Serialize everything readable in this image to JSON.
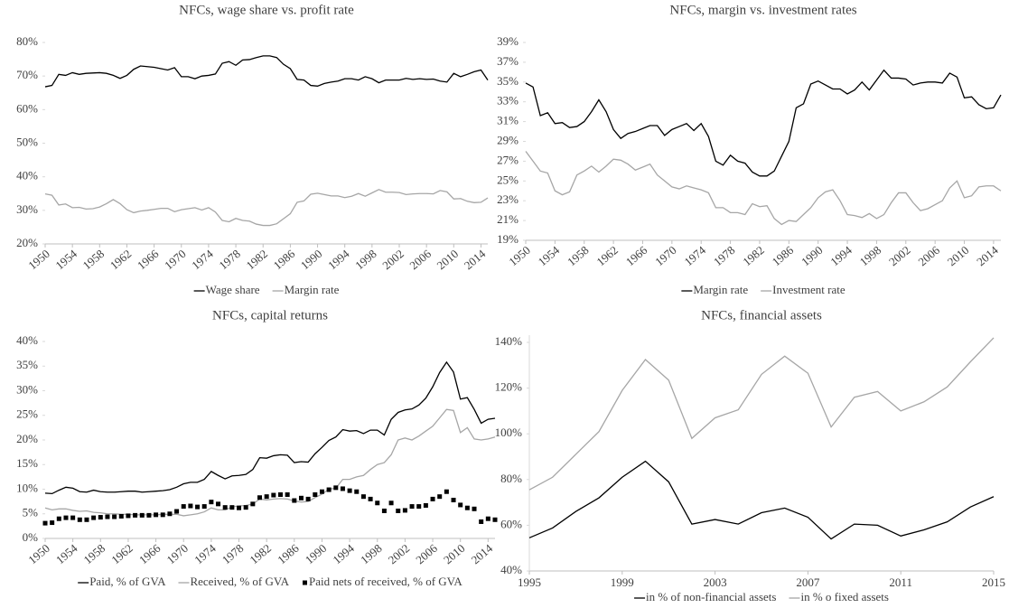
{
  "chart_data": [
    {
      "type": "line",
      "title": "NFCs, wage share vs. profit rate",
      "x": [
        1950,
        1951,
        1952,
        1953,
        1954,
        1955,
        1956,
        1957,
        1958,
        1959,
        1960,
        1961,
        1962,
        1963,
        1964,
        1965,
        1966,
        1967,
        1968,
        1969,
        1970,
        1971,
        1972,
        1973,
        1974,
        1975,
        1976,
        1977,
        1978,
        1979,
        1980,
        1981,
        1982,
        1983,
        1984,
        1985,
        1986,
        1987,
        1988,
        1989,
        1990,
        1991,
        1992,
        1993,
        1994,
        1995,
        1996,
        1997,
        1998,
        1999,
        2000,
        2001,
        2002,
        2003,
        2004,
        2005,
        2006,
        2007,
        2008,
        2009,
        2010,
        2011,
        2012,
        2013,
        2014,
        2015
      ],
      "series": [
        {
          "name": "Wage share",
          "color": "#000000",
          "values": [
            66.8,
            67.2,
            70.5,
            70.2,
            71.0,
            70.5,
            70.8,
            70.9,
            71.0,
            70.8,
            70.2,
            69.3,
            70.2,
            72.0,
            73.0,
            72.8,
            72.6,
            72.2,
            71.8,
            72.5,
            69.8,
            69.8,
            69.2,
            70.0,
            70.2,
            70.6,
            73.8,
            74.3,
            73.2,
            74.8,
            74.9,
            75.5,
            76.0,
            76.0,
            75.5,
            73.5,
            72.2,
            69.0,
            68.8,
            67.2,
            67.0,
            67.8,
            68.2,
            68.5,
            69.2,
            69.2,
            68.8,
            69.8,
            69.2,
            68.0,
            68.8,
            68.8,
            68.8,
            69.3,
            69.0,
            69.2,
            69.0,
            69.1,
            68.5,
            68.2,
            70.8,
            69.8,
            70.5,
            71.3,
            71.8,
            68.8
          ]
        },
        {
          "name": "Margin rate",
          "color": "#a6a6a6",
          "values": [
            34.9,
            34.5,
            31.6,
            31.9,
            30.8,
            30.9,
            30.4,
            30.5,
            31.0,
            32.0,
            33.2,
            32.0,
            30.2,
            29.3,
            29.8,
            30.0,
            30.3,
            30.6,
            30.6,
            29.6,
            30.2,
            30.5,
            30.8,
            30.1,
            30.8,
            29.5,
            27.0,
            26.6,
            27.6,
            27.0,
            26.8,
            25.9,
            25.5,
            25.5,
            26.0,
            27.5,
            29.0,
            32.4,
            32.8,
            34.8,
            35.1,
            34.7,
            34.3,
            34.3,
            33.8,
            34.2,
            35.0,
            34.2,
            35.2,
            36.2,
            35.4,
            35.4,
            35.3,
            34.7,
            34.9,
            35.0,
            35.0,
            34.9,
            35.9,
            35.5,
            33.4,
            33.5,
            32.7,
            32.3,
            32.4,
            33.7
          ]
        }
      ],
      "xlim": [
        1950,
        2015
      ],
      "xticks": [
        1950,
        1954,
        1958,
        1962,
        1966,
        1970,
        1974,
        1978,
        1982,
        1986,
        1990,
        1994,
        1998,
        2002,
        2006,
        2010,
        2014
      ],
      "ylim": [
        20,
        80
      ],
      "yticks": [
        {
          "value": 20,
          "label": "20%"
        },
        {
          "value": 30,
          "label": "30%"
        },
        {
          "value": 40,
          "label": "40%"
        },
        {
          "value": 50,
          "label": "50%"
        },
        {
          "value": 60,
          "label": "60%"
        },
        {
          "value": 70,
          "label": "70%"
        },
        {
          "value": 80,
          "label": "80%"
        }
      ],
      "legend": "bottom"
    },
    {
      "type": "line",
      "title": "NFCs, margin vs. investment rates",
      "x": [
        1950,
        1951,
        1952,
        1953,
        1954,
        1955,
        1956,
        1957,
        1958,
        1959,
        1960,
        1961,
        1962,
        1963,
        1964,
        1965,
        1966,
        1967,
        1968,
        1969,
        1970,
        1971,
        1972,
        1973,
        1974,
        1975,
        1976,
        1977,
        1978,
        1979,
        1980,
        1981,
        1982,
        1983,
        1984,
        1985,
        1986,
        1987,
        1988,
        1989,
        1990,
        1991,
        1992,
        1993,
        1994,
        1995,
        1996,
        1997,
        1998,
        1999,
        2000,
        2001,
        2002,
        2003,
        2004,
        2005,
        2006,
        2007,
        2008,
        2009,
        2010,
        2011,
        2012,
        2013,
        2014,
        2015
      ],
      "series": [
        {
          "name": "Margin rate",
          "color": "#000000",
          "values": [
            34.9,
            34.5,
            31.6,
            31.9,
            30.8,
            30.9,
            30.4,
            30.5,
            31.0,
            32.0,
            33.2,
            32.0,
            30.2,
            29.3,
            29.8,
            30.0,
            30.3,
            30.6,
            30.6,
            29.6,
            30.2,
            30.5,
            30.8,
            30.1,
            30.8,
            29.5,
            27.0,
            26.6,
            27.6,
            27.0,
            26.8,
            25.9,
            25.5,
            25.5,
            26.0,
            27.5,
            29.0,
            32.4,
            32.8,
            34.8,
            35.1,
            34.7,
            34.3,
            34.3,
            33.8,
            34.2,
            35.0,
            34.2,
            35.2,
            36.2,
            35.4,
            35.4,
            35.3,
            34.7,
            34.9,
            35.0,
            35.0,
            34.9,
            35.9,
            35.5,
            33.4,
            33.5,
            32.7,
            32.3,
            32.4,
            33.7
          ]
        },
        {
          "name": "Investment rate",
          "color": "#a6a6a6",
          "values": [
            28.0,
            27.0,
            26.0,
            25.8,
            24.0,
            23.6,
            23.9,
            25.6,
            26.0,
            26.5,
            25.9,
            26.5,
            27.2,
            27.1,
            26.7,
            26.1,
            26.4,
            26.7,
            25.6,
            25.0,
            24.4,
            24.2,
            24.5,
            24.3,
            24.1,
            23.8,
            22.3,
            22.3,
            21.8,
            21.8,
            21.6,
            22.7,
            22.4,
            22.5,
            21.2,
            20.6,
            21.0,
            20.9,
            21.6,
            22.3,
            23.3,
            23.9,
            24.1,
            23.0,
            21.6,
            21.5,
            21.3,
            21.7,
            21.2,
            21.6,
            22.8,
            23.8,
            23.8,
            22.8,
            22.0,
            22.2,
            22.6,
            23.0,
            24.3,
            25.0,
            23.3,
            23.5,
            24.4,
            24.5,
            24.5,
            24.0
          ]
        }
      ],
      "xlim": [
        1950,
        2015
      ],
      "xticks": [
        1950,
        1954,
        1958,
        1962,
        1966,
        1970,
        1974,
        1978,
        1982,
        1986,
        1990,
        1994,
        1998,
        2002,
        2006,
        2010,
        2014
      ],
      "ylim": [
        19,
        39
      ],
      "yticks": [
        {
          "value": 19,
          "label": "19%"
        },
        {
          "value": 21,
          "label": "21%"
        },
        {
          "value": 23,
          "label": "23%"
        },
        {
          "value": 25,
          "label": "25%"
        },
        {
          "value": 27,
          "label": "27%"
        },
        {
          "value": 29,
          "label": "29%"
        },
        {
          "value": 31,
          "label": "31%"
        },
        {
          "value": 33,
          "label": "33%"
        },
        {
          "value": 35,
          "label": "35%"
        },
        {
          "value": 37,
          "label": "37%"
        },
        {
          "value": 39,
          "label": "39%"
        }
      ],
      "legend": "bottom"
    },
    {
      "type": "line",
      "title": "NFCs, capital returns",
      "x": [
        1950,
        1951,
        1952,
        1953,
        1954,
        1955,
        1956,
        1957,
        1958,
        1959,
        1960,
        1961,
        1962,
        1963,
        1964,
        1965,
        1966,
        1967,
        1968,
        1969,
        1970,
        1971,
        1972,
        1973,
        1974,
        1975,
        1976,
        1977,
        1978,
        1979,
        1980,
        1981,
        1982,
        1983,
        1984,
        1985,
        1986,
        1987,
        1988,
        1989,
        1990,
        1991,
        1992,
        1993,
        1994,
        1995,
        1996,
        1997,
        1998,
        1999,
        2000,
        2001,
        2002,
        2003,
        2004,
        2005,
        2006,
        2007,
        2008,
        2009,
        2010,
        2011,
        2012,
        2013,
        2014,
        2015
      ],
      "series": [
        {
          "name": "Paid, % of GVA",
          "color": "#000000",
          "values": [
            9.2,
            9.1,
            9.8,
            10.4,
            10.2,
            9.5,
            9.4,
            9.8,
            9.5,
            9.4,
            9.4,
            9.5,
            9.6,
            9.6,
            9.4,
            9.5,
            9.6,
            9.7,
            9.9,
            10.4,
            11.1,
            11.4,
            11.4,
            12.0,
            13.6,
            12.8,
            12.1,
            12.7,
            12.8,
            13.0,
            14.0,
            16.4,
            16.3,
            16.8,
            17.0,
            16.9,
            15.4,
            15.6,
            15.5,
            17.2,
            18.5,
            19.9,
            20.6,
            22.1,
            21.8,
            21.9,
            21.3,
            22.0,
            22.0,
            21.0,
            24.2,
            25.6,
            26.1,
            26.3,
            27.1,
            28.5,
            30.8,
            33.7,
            35.8,
            33.8,
            28.3,
            28.6,
            26.2,
            23.4,
            24.2,
            24.4
          ]
        },
        {
          "name": "Received, % of GVA",
          "color": "#a6a6a6",
          "values": [
            6.2,
            5.8,
            6.0,
            6.0,
            5.7,
            5.5,
            5.6,
            5.3,
            5.2,
            5.0,
            5.0,
            4.9,
            4.9,
            4.8,
            4.8,
            4.8,
            4.8,
            4.9,
            4.9,
            4.9,
            4.6,
            4.8,
            5.0,
            5.4,
            6.2,
            5.8,
            5.8,
            6.4,
            6.6,
            6.7,
            7.0,
            8.0,
            7.8,
            8.0,
            8.1,
            8.0,
            7.6,
            7.4,
            7.5,
            8.3,
            9.0,
            10.0,
            10.2,
            12.0,
            12.0,
            12.5,
            12.8,
            14.0,
            15.0,
            15.4,
            17.0,
            20.0,
            20.4,
            20.0,
            20.8,
            21.8,
            22.8,
            24.5,
            26.2,
            26.0,
            21.5,
            22.5,
            20.2,
            20.0,
            20.2,
            20.6
          ]
        },
        {
          "name": "Paid nets of received, % of GVA",
          "color": "#000000",
          "marker": "square",
          "values": [
            3.1,
            3.2,
            4.0,
            4.2,
            4.2,
            3.8,
            3.8,
            4.2,
            4.3,
            4.4,
            4.4,
            4.5,
            4.6,
            4.7,
            4.7,
            4.7,
            4.8,
            4.8,
            5.0,
            5.5,
            6.5,
            6.6,
            6.4,
            6.5,
            7.4,
            7.0,
            6.3,
            6.3,
            6.2,
            6.3,
            7.0,
            8.3,
            8.5,
            8.8,
            8.9,
            8.9,
            7.7,
            8.2,
            8.0,
            8.9,
            9.5,
            9.9,
            10.3,
            10.1,
            9.7,
            9.5,
            8.5,
            8.0,
            7.2,
            5.6,
            7.2,
            5.6,
            5.7,
            6.5,
            6.5,
            6.7,
            8.0,
            8.5,
            9.5,
            7.8,
            6.8,
            6.2,
            6.0,
            3.4,
            4.0,
            3.8
          ]
        }
      ],
      "xlim": [
        1950,
        2015
      ],
      "xticks": [
        1950,
        1954,
        1958,
        1962,
        1966,
        1970,
        1974,
        1978,
        1982,
        1986,
        1990,
        1994,
        1998,
        2002,
        2006,
        2010,
        2014
      ],
      "ylim": [
        0,
        40
      ],
      "yticks": [
        {
          "value": 0,
          "label": "0%"
        },
        {
          "value": 5,
          "label": "5%"
        },
        {
          "value": 10,
          "label": "10%"
        },
        {
          "value": 15,
          "label": "15%"
        },
        {
          "value": 20,
          "label": "20%"
        },
        {
          "value": 25,
          "label": "25%"
        },
        {
          "value": 30,
          "label": "30%"
        },
        {
          "value": 35,
          "label": "35%"
        },
        {
          "value": 40,
          "label": "40%"
        }
      ],
      "legend": "bottom"
    },
    {
      "type": "line",
      "title": "NFCs, financial assets",
      "x": [
        1995,
        1996,
        1997,
        1998,
        1999,
        2000,
        2001,
        2002,
        2003,
        2004,
        2005,
        2006,
        2007,
        2008,
        2009,
        2010,
        2011,
        2012,
        2013,
        2014,
        2015
      ],
      "series": [
        {
          "name": "in % of non-financial assets",
          "color": "#000000",
          "values": [
            54.5,
            58.8,
            66,
            72,
            81,
            88,
            79,
            60.5,
            62.5,
            60.5,
            65.5,
            67.5,
            63.5,
            54,
            60.5,
            60,
            55.3,
            58,
            61.5,
            68,
            72.5
          ]
        },
        {
          "name": "in % o fixed assets",
          "color": "#a6a6a6",
          "values": [
            75.5,
            81,
            91,
            101,
            119,
            132.5,
            123.5,
            98,
            107,
            110.5,
            126,
            134,
            126.5,
            103,
            116,
            118.5,
            110,
            114,
            120.5,
            131.5,
            142
          ]
        }
      ],
      "xlim": [
        1995,
        2015
      ],
      "xticks": [
        1995,
        1999,
        2003,
        2007,
        2011,
        2015
      ],
      "ylim": [
        40,
        140
      ],
      "yticks": [
        {
          "value": 40,
          "label": "40%"
        },
        {
          "value": 60,
          "label": "60%"
        },
        {
          "value": 80,
          "label": "80%"
        },
        {
          "value": 100,
          "label": "100%"
        },
        {
          "value": 120,
          "label": "120%"
        },
        {
          "value": 140,
          "label": "140%"
        }
      ],
      "legend": "bottom"
    }
  ]
}
